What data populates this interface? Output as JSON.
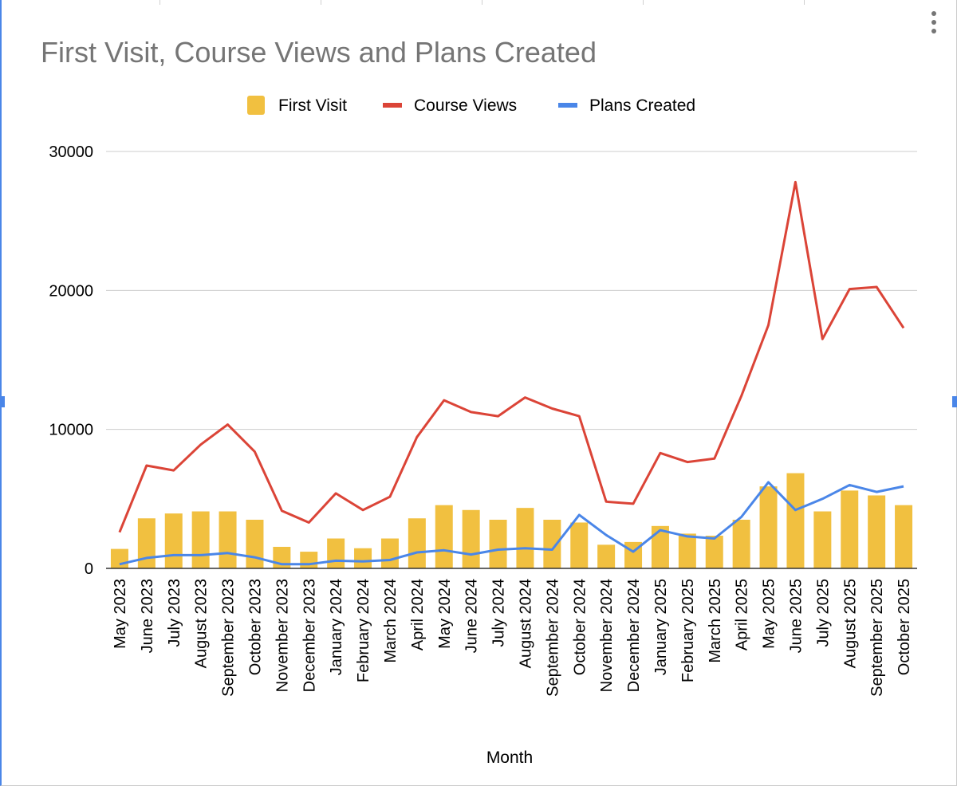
{
  "chart_data": {
    "type": "bar",
    "title": "First Visit, Course Views and Plans Created",
    "xlabel": "Month",
    "ylabel": "",
    "ylim": [
      0,
      30000
    ],
    "yticks": [
      "0",
      "10000",
      "20000",
      "30000"
    ],
    "grid": true,
    "legend_position": "top",
    "categories": [
      "May 2023",
      "June 2023",
      "July 2023",
      "August 2023",
      "September 2023",
      "October 2023",
      "November 2023",
      "December 2023",
      "January 2024",
      "February 2024",
      "March 2024",
      "April 2024",
      "May 2024",
      "June 2024",
      "July 2024",
      "August 2024",
      "September 2024",
      "October 2024",
      "November 2024",
      "December 2024",
      "January 2025",
      "February 2025",
      "March 2025",
      "April 2025",
      "May 2025",
      "June 2025",
      "July 2025",
      "August 2025",
      "September 2025",
      "October 2025"
    ],
    "series": [
      {
        "name": "First Visit",
        "type": "bar",
        "color": "#f1c040",
        "values": [
          1400,
          3600,
          3950,
          4100,
          4100,
          3500,
          1550,
          1200,
          2150,
          1450,
          2150,
          3600,
          4550,
          4200,
          3500,
          4350,
          3500,
          3300,
          1700,
          1900,
          3050,
          2500,
          2350,
          3500,
          5900,
          6850,
          4100,
          5600,
          5250,
          4550
        ]
      },
      {
        "name": "Course Views",
        "type": "line",
        "color": "#db4437",
        "values": [
          2600,
          7400,
          7050,
          8900,
          10350,
          8400,
          4150,
          3300,
          5400,
          4200,
          5150,
          9450,
          12100,
          11250,
          10950,
          12300,
          11500,
          10950,
          4800,
          4650,
          8300,
          7650,
          7900,
          12400,
          17500,
          27800,
          16500,
          20100,
          20250,
          17300
        ]
      },
      {
        "name": "Plans Created",
        "type": "line",
        "color": "#4a86e8",
        "values": [
          300,
          750,
          950,
          950,
          1100,
          800,
          300,
          300,
          550,
          500,
          600,
          1150,
          1300,
          1000,
          1350,
          1450,
          1350,
          3850,
          2400,
          1200,
          2750,
          2300,
          2150,
          3700,
          6200,
          4200,
          5000,
          6000,
          5500,
          5900
        ]
      }
    ]
  },
  "ui": {
    "menu_icon": "more-vertical-icon"
  }
}
